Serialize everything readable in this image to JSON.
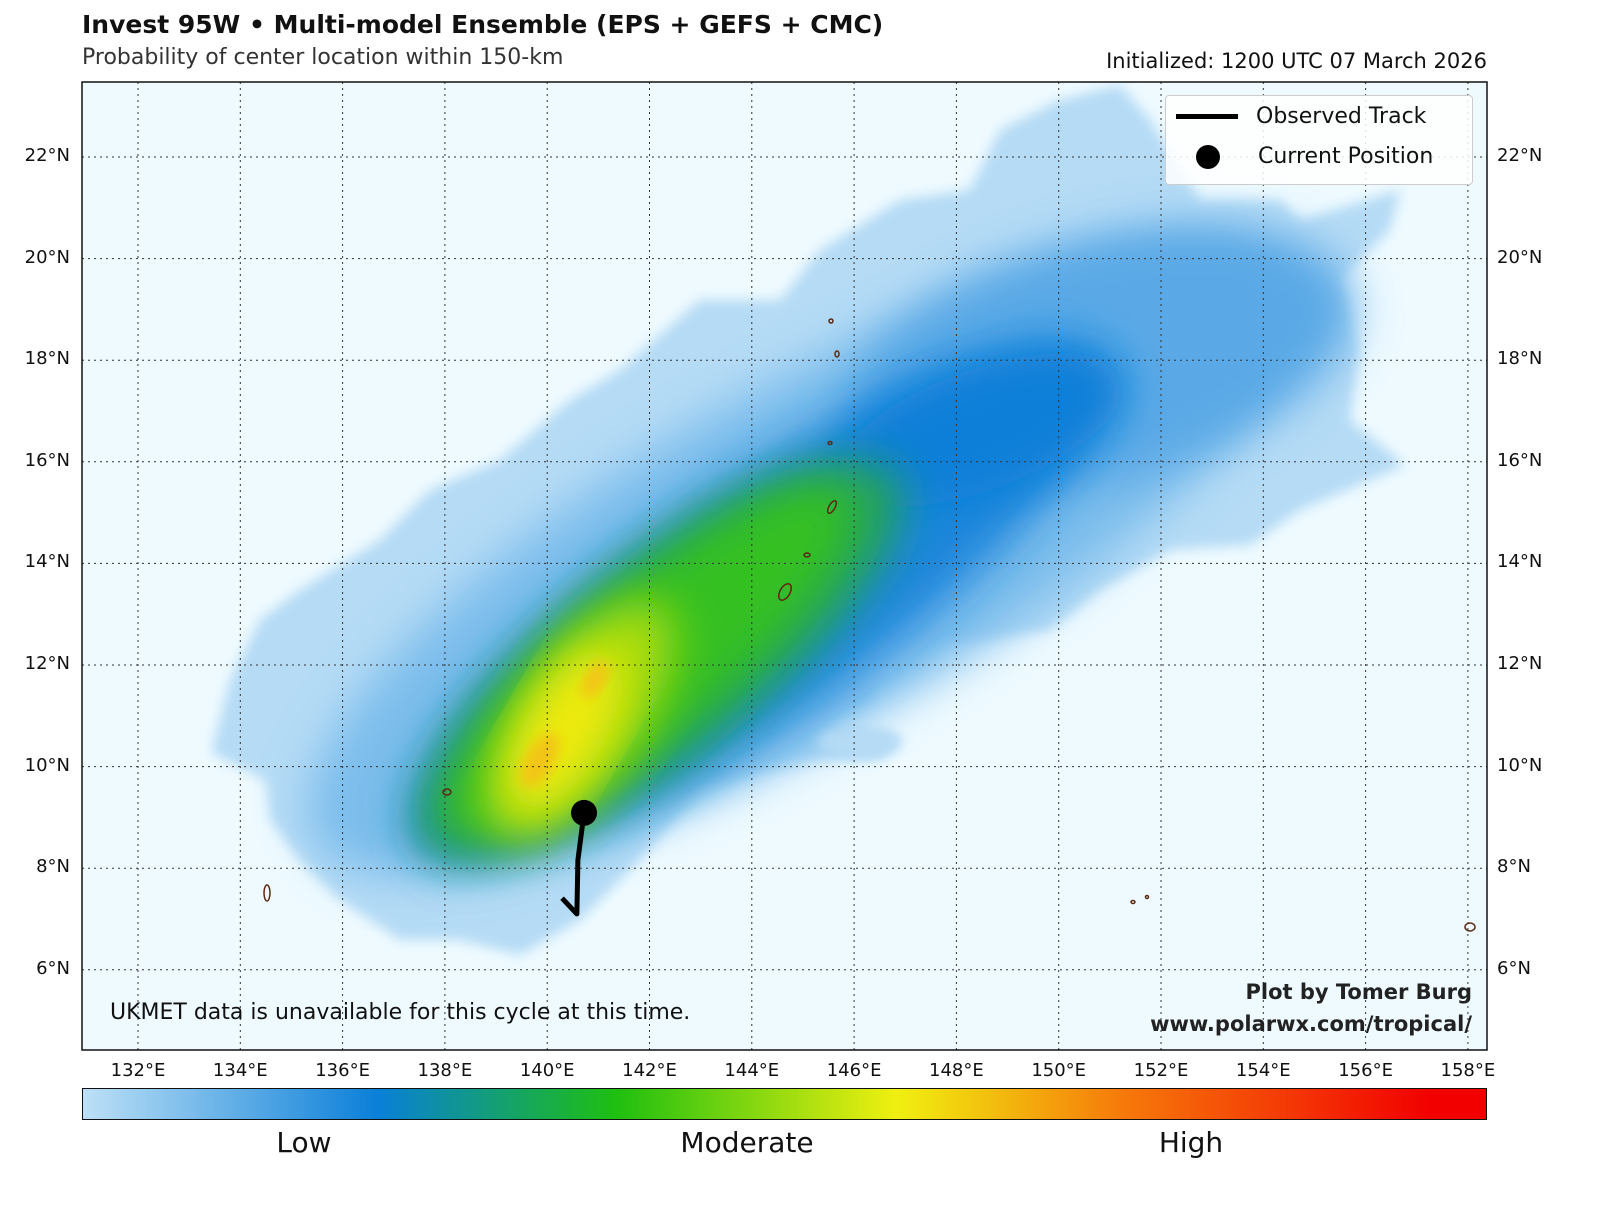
{
  "header": {
    "title": "Invest 95W • Multi-model Ensemble (EPS + GEFS + CMC)",
    "subtitle": "Probability of center location within 150-km",
    "initialized": "Initialized: 1200 UTC 07 March 2026"
  },
  "legend": {
    "observed_track": "Observed Track",
    "current_position": "Current Position"
  },
  "annotations": {
    "note": "UKMET data is unavailable for this cycle at this time.",
    "credit": "Plot by Tomer Burg",
    "url": "www.polarwx.com/tropical/"
  },
  "colorbar": {
    "labels": [
      "Low",
      "Moderate",
      "High"
    ],
    "colors": [
      "#bde0f6",
      "#0a7fd8",
      "#1fbf10",
      "#f0f010",
      "#f67a0a",
      "#f20000"
    ]
  },
  "chart_data": {
    "type": "heatmap",
    "title": "Invest 95W • Multi-model Ensemble (EPS + GEFS + CMC)",
    "lon_range": [
      130.9,
      158.4
    ],
    "lat_range": [
      4.4,
      23.5
    ],
    "lon_ticks": [
      "132°E",
      "134°E",
      "136°E",
      "138°E",
      "140°E",
      "142°E",
      "144°E",
      "146°E",
      "148°E",
      "150°E",
      "152°E",
      "154°E",
      "156°E",
      "158°E"
    ],
    "lon_values": [
      132,
      134,
      136,
      138,
      140,
      142,
      144,
      146,
      148,
      150,
      152,
      154,
      156,
      158
    ],
    "lat_ticks": [
      "6°N",
      "8°N",
      "10°N",
      "12°N",
      "14°N",
      "16°N",
      "18°N",
      "20°N",
      "22°N"
    ],
    "lat_values": [
      6,
      8,
      10,
      12,
      14,
      16,
      18,
      20,
      22
    ],
    "observed_track": [
      {
        "lon": 140.29,
        "lat": 7.41
      },
      {
        "lon": 140.58,
        "lat": 7.1
      },
      {
        "lon": 140.6,
        "lat": 8.16
      },
      {
        "lon": 140.72,
        "lat": 9.09
      }
    ],
    "current_position": {
      "lon": 140.72,
      "lat": 9.09
    },
    "max_probability_center": {
      "lon": 140.5,
      "lat": 10.5
    }
  }
}
